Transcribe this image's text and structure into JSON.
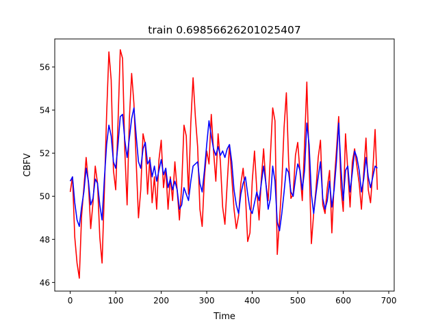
{
  "chart_data": {
    "type": "line",
    "title": "train 0.69856626201025407",
    "xlabel": "Time",
    "ylabel": "CBFV",
    "xlim": [
      -34,
      712
    ],
    "ylim": [
      45.6,
      57.3
    ],
    "xticks": [
      0,
      100,
      200,
      300,
      400,
      500,
      600,
      700
    ],
    "yticks": [
      46,
      48,
      50,
      52,
      54,
      56
    ],
    "grid": false,
    "legend": "none",
    "series": [
      {
        "color": "#ff0000",
        "x": [
          0,
          5,
          10,
          15,
          20,
          25,
          30,
          35,
          40,
          45,
          50,
          55,
          60,
          65,
          70,
          75,
          80,
          85,
          90,
          95,
          100,
          105,
          110,
          115,
          120,
          125,
          130,
          135,
          140,
          145,
          150,
          155,
          160,
          165,
          170,
          175,
          180,
          185,
          190,
          195,
          200,
          205,
          210,
          215,
          220,
          225,
          230,
          235,
          240,
          245,
          250,
          255,
          260,
          265,
          270,
          275,
          280,
          285,
          290,
          295,
          300,
          305,
          310,
          315,
          320,
          325,
          330,
          335,
          340,
          345,
          350,
          355,
          360,
          365,
          370,
          375,
          380,
          385,
          390,
          395,
          400,
          405,
          410,
          415,
          420,
          425,
          430,
          435,
          440,
          445,
          450,
          455,
          460,
          465,
          470,
          475,
          480,
          485,
          490,
          495,
          500,
          505,
          510,
          515,
          520,
          525,
          530,
          535,
          540,
          545,
          550,
          555,
          560,
          565,
          570,
          575,
          580,
          585,
          590,
          595,
          600,
          605,
          610,
          615,
          620,
          625,
          630,
          635,
          640,
          645,
          650,
          655,
          660,
          665,
          670,
          675
        ],
        "y": [
          50.2,
          50.9,
          48.1,
          46.9,
          46.2,
          49.1,
          50.4,
          51.8,
          50.6,
          48.5,
          49.7,
          51.4,
          50.6,
          48.1,
          46.9,
          50.2,
          53.8,
          56.7,
          55.4,
          51.2,
          50.3,
          53.4,
          56.8,
          56.4,
          52.1,
          49.6,
          53.6,
          55.7,
          54.3,
          51.6,
          49.0,
          50.3,
          52.9,
          52.4,
          50.1,
          51.8,
          49.7,
          50.9,
          49.4,
          51.7,
          52.6,
          50.4,
          51.3,
          49.4,
          50.9,
          49.8,
          51.6,
          50.3,
          48.9,
          50.5,
          53.3,
          52.8,
          50.1,
          53.4,
          55.5,
          53.7,
          52.3,
          49.4,
          48.6,
          50.9,
          52.1,
          51.5,
          53.8,
          52.1,
          50.7,
          52.9,
          51.6,
          49.5,
          48.7,
          50.6,
          52.4,
          50.9,
          49.4,
          48.5,
          49.1,
          50.6,
          51.3,
          50.1,
          47.9,
          48.3,
          50.7,
          52.1,
          50.3,
          48.9,
          50.8,
          52.2,
          50.6,
          49.8,
          51.9,
          54.1,
          53.5,
          47.3,
          48.9,
          50.6,
          53.2,
          54.8,
          51.6,
          49.9,
          50.1,
          51.9,
          52.5,
          51.1,
          49.8,
          52.4,
          55.3,
          51.6,
          47.8,
          49.2,
          50.3,
          51.8,
          52.6,
          49.6,
          49.2,
          50.4,
          51.2,
          48.3,
          50.6,
          52.1,
          53.7,
          50.4,
          49.3,
          52.9,
          51.2,
          49.5,
          51.6,
          52.2,
          51.4,
          50.6,
          49.4,
          51.1,
          52.7,
          50.3,
          49.7,
          51.2,
          53.1,
          50.3
        ]
      },
      {
        "color": "#0000ff",
        "x": [
          0,
          5,
          10,
          15,
          20,
          25,
          30,
          35,
          40,
          45,
          50,
          55,
          60,
          65,
          70,
          75,
          80,
          85,
          90,
          95,
          100,
          105,
          110,
          115,
          120,
          125,
          130,
          135,
          140,
          145,
          150,
          155,
          160,
          165,
          170,
          175,
          180,
          185,
          190,
          195,
          200,
          205,
          210,
          215,
          220,
          225,
          230,
          235,
          240,
          245,
          250,
          255,
          260,
          265,
          270,
          275,
          280,
          285,
          290,
          295,
          300,
          305,
          310,
          315,
          320,
          325,
          330,
          335,
          340,
          345,
          350,
          355,
          360,
          365,
          370,
          375,
          380,
          385,
          390,
          395,
          400,
          405,
          410,
          415,
          420,
          425,
          430,
          435,
          440,
          445,
          450,
          455,
          460,
          465,
          470,
          475,
          480,
          485,
          490,
          495,
          500,
          505,
          510,
          515,
          520,
          525,
          530,
          535,
          540,
          545,
          550,
          555,
          560,
          565,
          570,
          575,
          580,
          585,
          590,
          595,
          600,
          605,
          610,
          615,
          620,
          625,
          630,
          635,
          640,
          645,
          650,
          655,
          660,
          665,
          670,
          675
        ],
        "y": [
          50.7,
          50.9,
          49.7,
          48.9,
          48.6,
          49.5,
          50.2,
          51.3,
          50.7,
          49.6,
          49.9,
          50.8,
          50.6,
          49.6,
          48.9,
          50.8,
          52.4,
          53.3,
          52.8,
          51.6,
          51.3,
          52.4,
          53.7,
          53.8,
          52.6,
          51.8,
          52.7,
          53.6,
          54.1,
          52.8,
          51.6,
          51.3,
          52.2,
          52.5,
          51.5,
          51.7,
          50.9,
          51.4,
          50.7,
          51.2,
          51.7,
          51.0,
          51.3,
          50.4,
          50.8,
          50.3,
          50.7,
          50.3,
          49.4,
          49.6,
          50.4,
          50.1,
          49.8,
          50.7,
          51.4,
          51.5,
          51.6,
          50.6,
          50.2,
          51.2,
          52.4,
          53.5,
          52.8,
          52.2,
          51.9,
          52.3,
          51.9,
          52.1,
          51.8,
          52.2,
          52.4,
          51.6,
          50.3,
          49.6,
          49.2,
          50.1,
          50.6,
          50.9,
          50.1,
          49.4,
          49.2,
          49.7,
          50.2,
          49.8,
          50.6,
          51.4,
          50.6,
          49.4,
          49.9,
          51.4,
          50.7,
          48.8,
          48.4,
          49.2,
          50.2,
          51.3,
          51.1,
          50.2,
          50.0,
          50.8,
          51.5,
          51.2,
          50.3,
          51.2,
          53.4,
          52.4,
          50.1,
          49.2,
          50.1,
          50.9,
          51.6,
          49.9,
          49.4,
          49.8,
          50.7,
          49.5,
          50.3,
          51.6,
          53.4,
          51.3,
          49.8,
          51.2,
          51.4,
          50.2,
          51.1,
          52.1,
          51.8,
          51.2,
          50.2,
          50.8,
          51.8,
          50.9,
          50.4,
          50.9,
          51.4,
          51.3
        ]
      }
    ]
  }
}
